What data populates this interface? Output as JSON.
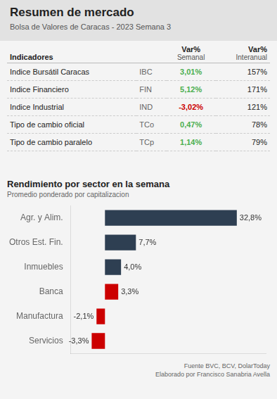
{
  "chart_data": [
    {
      "type": "table",
      "title": "Resumen de mercado",
      "subtitle": "Bolsa de Valores de Caracas - 2023 Semana 3",
      "header": [
        [
          "Indicadores"
        ],
        [
          "Var%",
          "Semanal"
        ],
        [
          "Var%",
          "Interanual"
        ]
      ],
      "rows": [
        [
          "Indice Bursátil Caracas",
          "IBC",
          "3,01%",
          "157%"
        ],
        [
          "Indice Financiero",
          "FIN",
          "5,12%",
          "171%"
        ],
        [
          "Indice Industrial",
          "IND",
          "-3,02%",
          "121%"
        ],
        [
          "Tipo de cambio oficial",
          "TCo",
          "0,47%",
          "78%"
        ],
        [
          "Tipo de cambio paralelo",
          "TCp",
          "1,14%",
          "79%"
        ]
      ],
      "colors": [
        "#4caf50",
        "#4caf50",
        "#cc0000",
        "#4caf50",
        "#4caf50"
      ]
    },
    {
      "type": "bar",
      "title": "Rendimiento por sector en la semana",
      "subtitle": "Promedio ponderado por capitalizacion",
      "orientation": "horizontal",
      "categories": [
        "Agr. y Alim.",
        "Otros Est. Fin.",
        "Inmuebles",
        "Banca",
        "Manufactura",
        "Servicios"
      ],
      "values": [
        32.8,
        7.7,
        4.0,
        3.3,
        -2.1,
        -3.3
      ],
      "value_labels": [
        "32,8%",
        "7,7%",
        "4,0%",
        "3,3%",
        "-2,1%",
        "-3,3%"
      ],
      "colors": [
        "#2e3f52",
        "#2e3f52",
        "#2e3f52",
        "#cc0000",
        "#cc0000",
        "#cc0000"
      ],
      "xlim": [
        -8.5,
        40
      ],
      "data_labels": true,
      "tick_labels": "y",
      "grid": false,
      "annotations": [
        "Fuente BVC, BCV, DolarToday",
        "Elaborado por Francisco Sanabria Avella"
      ]
    }
  ]
}
